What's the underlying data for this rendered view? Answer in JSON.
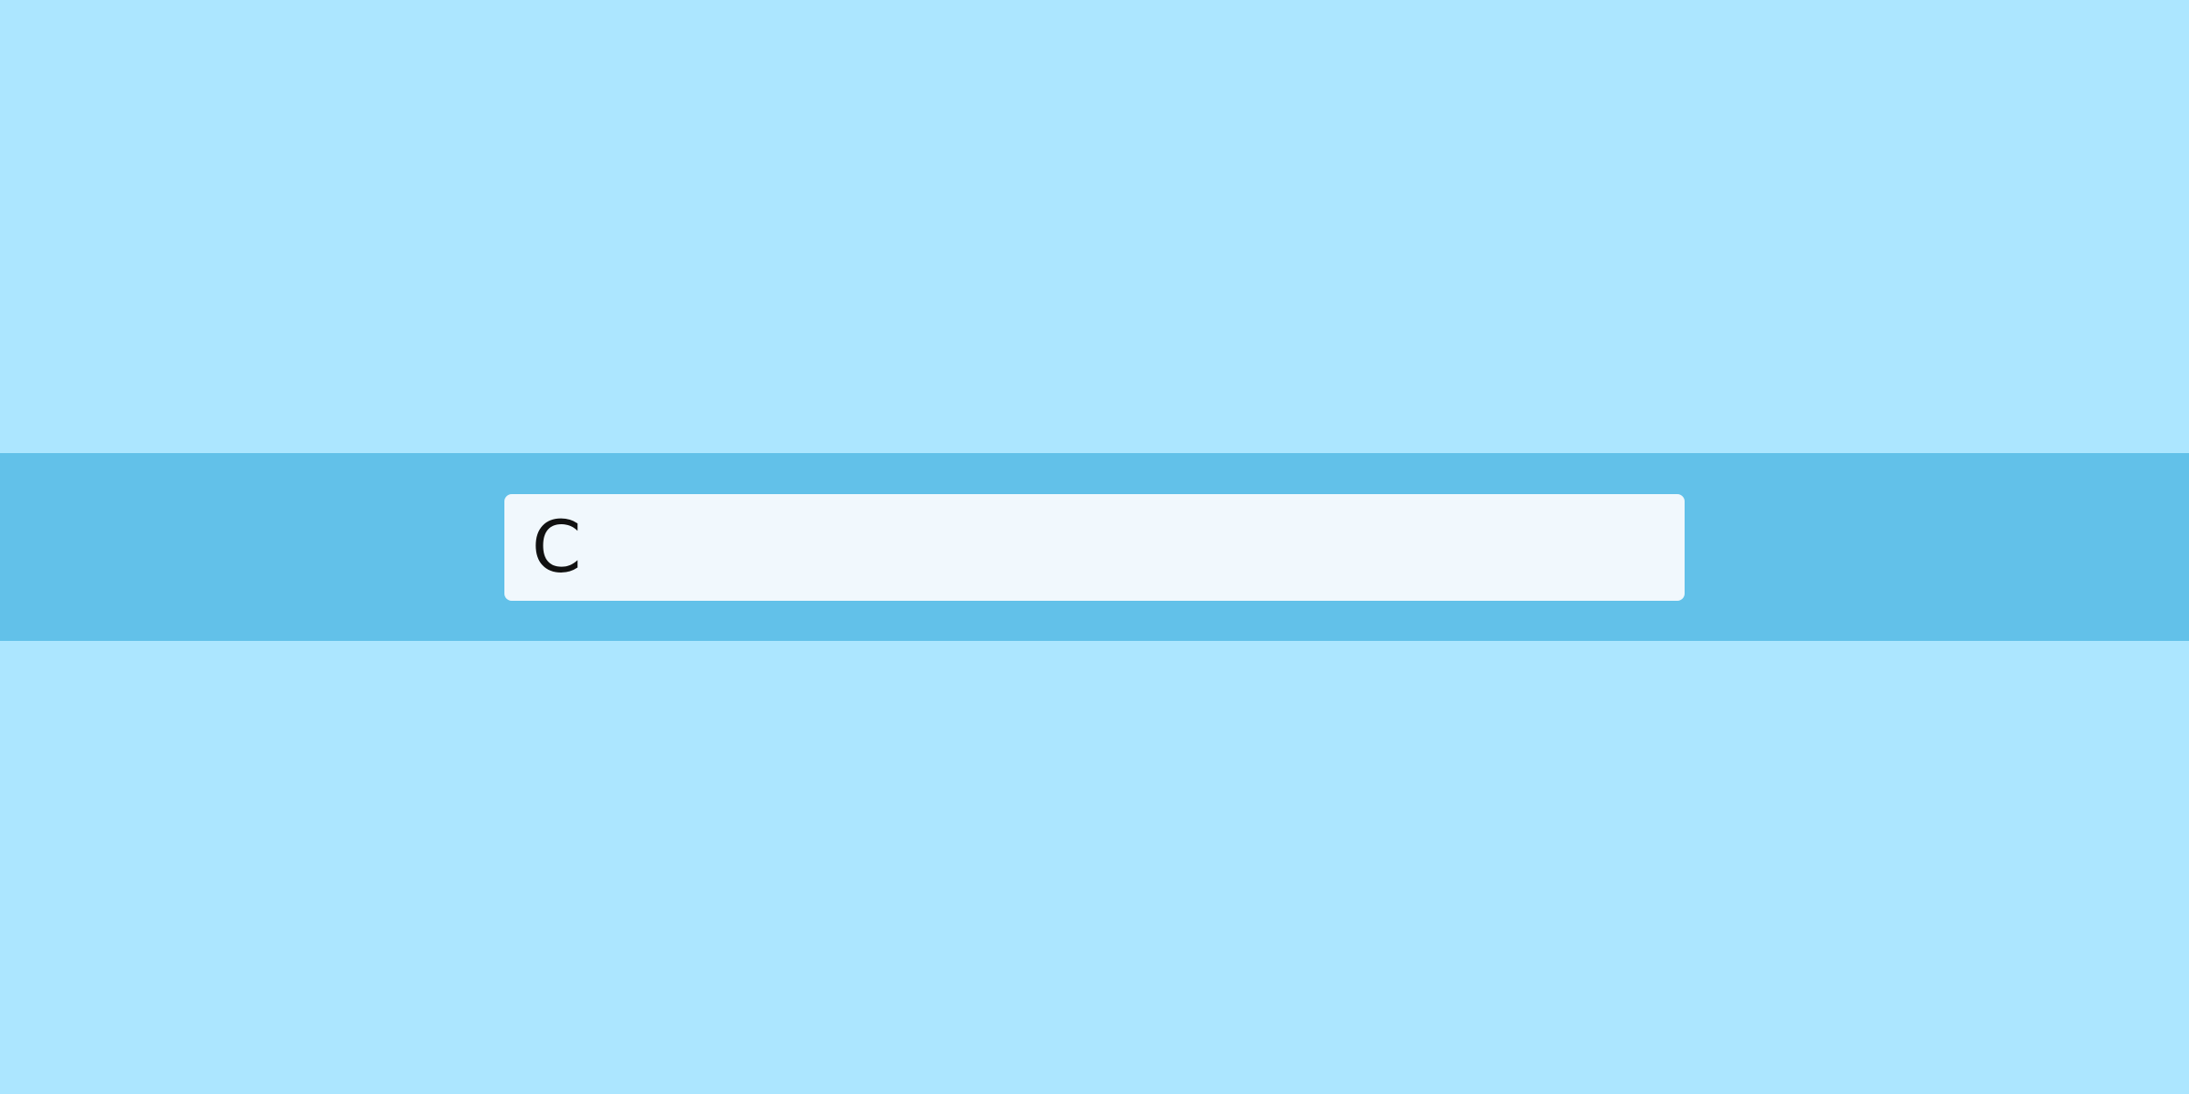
{
  "search": {
    "value": "C",
    "placeholder": ""
  },
  "colors": {
    "background": "#ace6ff",
    "band": "#62c1e9",
    "input_background": "#f1f8fd",
    "text": "#111111"
  }
}
